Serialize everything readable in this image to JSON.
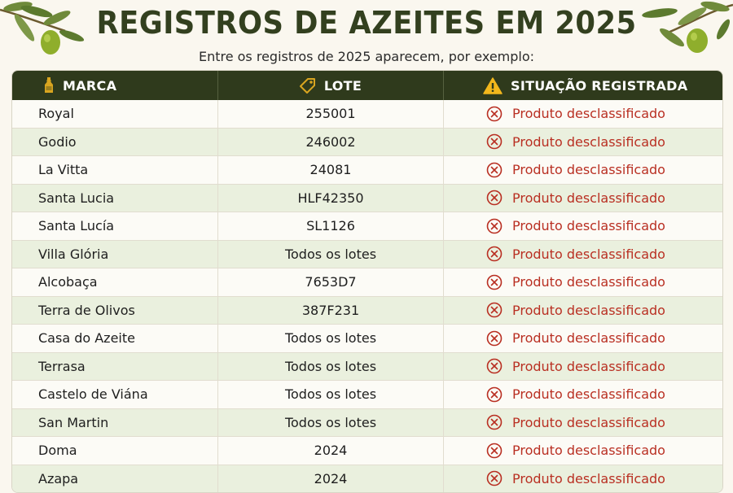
{
  "title": "REGISTROS DE AZEITES EM 2025",
  "subtitle": "Entre os registros de 2025 aparecem, por exemplo:",
  "colors": {
    "header_bg": "#2f3a1c",
    "status_red": "#b92f22",
    "row_alt": "#eaf0de",
    "title": "#33401f"
  },
  "headers": [
    {
      "label": "MARCA",
      "icon": "bottle-icon"
    },
    {
      "label": "LOTE",
      "icon": "tag-icon"
    },
    {
      "label": "SITUAÇÃO REGISTRADA",
      "icon": "warning-icon"
    }
  ],
  "rows": [
    {
      "marca": "Royal",
      "lote": "255001",
      "situacao": "Produto desclassificado"
    },
    {
      "marca": "Godio",
      "lote": "246002",
      "situacao": "Produto desclassificado"
    },
    {
      "marca": "La Vitta",
      "lote": "24081",
      "situacao": "Produto desclassificado"
    },
    {
      "marca": "Santa Lucia",
      "lote": "HLF42350",
      "situacao": "Produto desclassificado"
    },
    {
      "marca": "Santa Lucía",
      "lote": "SL1126",
      "situacao": "Produto desclassificado"
    },
    {
      "marca": "Villa Glória",
      "lote": "Todos os lotes",
      "situacao": "Produto desclassificado"
    },
    {
      "marca": "Alcobaça",
      "lote": "7653D7",
      "situacao": "Produto desclassificado"
    },
    {
      "marca": "Terra de Olivos",
      "lote": "387F231",
      "situacao": "Produto desclassificado"
    },
    {
      "marca": "Casa do Azeite",
      "lote": "Todos os lotes",
      "situacao": "Produto desclassificado"
    },
    {
      "marca": "Terrasa",
      "lote": "Todos os lotes",
      "situacao": "Produto desclassificado"
    },
    {
      "marca": "Castelo de Viána",
      "lote": "Todos os lotes",
      "situacao": "Produto desclassificado"
    },
    {
      "marca": "San Martin",
      "lote": "Todos os lotes",
      "situacao": "Produto desclassificado"
    },
    {
      "marca": "Doma",
      "lote": "2024",
      "situacao": "Produto desclassificado"
    },
    {
      "marca": "Azapa",
      "lote": "2024",
      "situacao": "Produto desclassificado"
    }
  ]
}
